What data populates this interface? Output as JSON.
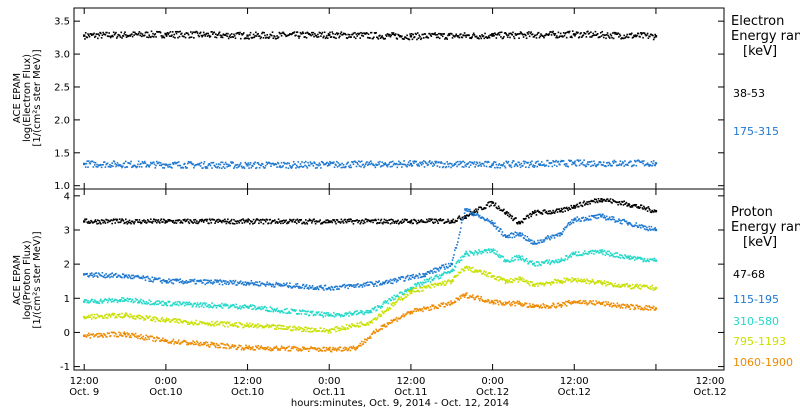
{
  "chart_data": [
    {
      "type": "scatter",
      "ylabel_lines": [
        "ACE EPAM",
        "log(Electron Flux)",
        "[1/(cm²s ster MeV)]"
      ],
      "ylim": [
        0.95,
        3.7
      ],
      "yticks": [
        1.0,
        1.5,
        2.0,
        2.5,
        3.0,
        3.5
      ],
      "ytick_labels": [
        "1.0",
        "1.5",
        "2.0",
        "2.5",
        "3.0",
        "3.5"
      ],
      "legend_title": [
        "Electron",
        "Energy ran",
        "[keV]"
      ],
      "series": [
        {
          "name": "38-53",
          "color": "#000000",
          "x": [
            0,
            12,
            24,
            36,
            48,
            60,
            72,
            84
          ],
          "values": [
            3.28,
            3.3,
            3.28,
            3.29,
            3.27,
            3.28,
            3.3,
            3.27
          ]
        },
        {
          "name": "175-315",
          "color": "#1f78d0",
          "x": [
            0,
            12,
            24,
            36,
            48,
            60,
            72,
            84
          ],
          "values": [
            1.33,
            1.32,
            1.31,
            1.32,
            1.33,
            1.32,
            1.34,
            1.34
          ]
        }
      ]
    },
    {
      "type": "scatter",
      "ylabel_lines": [
        "ACE EPAM",
        "log(Proton Flux)",
        "[1/(cm²s ster MeV)]"
      ],
      "ylim": [
        -1.1,
        4.2
      ],
      "yticks": [
        -1,
        0,
        1,
        2,
        3,
        4
      ],
      "ytick_labels": [
        "-1",
        "0",
        "1",
        "2",
        "3",
        "4"
      ],
      "legend_title": [
        "Proton",
        "Energy ran",
        "[keV]"
      ],
      "series": [
        {
          "name": "47-68",
          "color": "#000000",
          "x": [
            0,
            12,
            24,
            36,
            48,
            54,
            56,
            60,
            62,
            64,
            66,
            70,
            72,
            76,
            80,
            84
          ],
          "values": [
            3.25,
            3.25,
            3.25,
            3.25,
            3.25,
            3.26,
            3.4,
            3.8,
            3.5,
            3.2,
            3.5,
            3.55,
            3.7,
            3.9,
            3.75,
            3.55
          ]
        },
        {
          "name": "115-195",
          "color": "#1f78d0",
          "x": [
            0,
            6,
            12,
            24,
            36,
            44,
            50,
            54,
            56,
            60,
            62,
            64,
            66,
            70,
            72,
            76,
            80,
            84
          ],
          "values": [
            1.7,
            1.65,
            1.5,
            1.45,
            1.3,
            1.45,
            1.7,
            2.0,
            3.6,
            3.2,
            2.8,
            2.9,
            2.6,
            2.9,
            3.3,
            3.4,
            3.2,
            3.0
          ]
        },
        {
          "name": "310-580",
          "color": "#22d8c8",
          "x": [
            0,
            6,
            12,
            24,
            36,
            42,
            48,
            54,
            56,
            60,
            62,
            64,
            66,
            70,
            72,
            76,
            80,
            84
          ],
          "values": [
            0.9,
            0.95,
            0.85,
            0.75,
            0.5,
            0.6,
            1.3,
            1.8,
            2.3,
            2.4,
            2.1,
            2.2,
            2.0,
            2.1,
            2.3,
            2.35,
            2.2,
            2.1
          ]
        },
        {
          "name": "795-1193",
          "color": "#c8e000",
          "x": [
            0,
            6,
            12,
            24,
            36,
            42,
            48,
            54,
            56,
            60,
            62,
            64,
            66,
            70,
            72,
            76,
            80,
            84
          ],
          "values": [
            0.45,
            0.5,
            0.35,
            0.2,
            0.05,
            0.3,
            1.2,
            1.5,
            1.9,
            1.65,
            1.5,
            1.55,
            1.4,
            1.5,
            1.55,
            1.45,
            1.35,
            1.3
          ]
        },
        {
          "name": "1060-1900",
          "color": "#ee8a00",
          "x": [
            0,
            6,
            12,
            24,
            36,
            40,
            44,
            48,
            54,
            56,
            60,
            62,
            64,
            66,
            70,
            72,
            76,
            80,
            84
          ],
          "values": [
            -0.1,
            -0.05,
            -0.25,
            -0.45,
            -0.5,
            -0.45,
            0.2,
            0.6,
            0.85,
            1.1,
            0.9,
            0.85,
            0.85,
            0.75,
            0.8,
            0.9,
            0.85,
            0.75,
            0.7
          ]
        }
      ]
    }
  ],
  "x_axis": {
    "range": [
      -1.5,
      94
    ],
    "ticks": [
      0,
      12,
      24,
      36,
      48,
      60,
      72,
      84
    ],
    "tick_labels_top": [
      "12:00",
      "0:00",
      "12:00",
      "0:00",
      "12:00",
      "0:00",
      "12:00",
      ""
    ],
    "tick_labels_bottom": [
      "Oct. 9",
      "Oct.10",
      "Oct.10",
      "Oct.11",
      "Oct.11",
      "Oct.12",
      "Oct.12",
      ""
    ],
    "first_label_top": "12:00",
    "first_label_bottom": "Oct. 9",
    "xlabel": "hours:minutes, Oct.  9, 2014 - Oct. 12, 2014"
  }
}
